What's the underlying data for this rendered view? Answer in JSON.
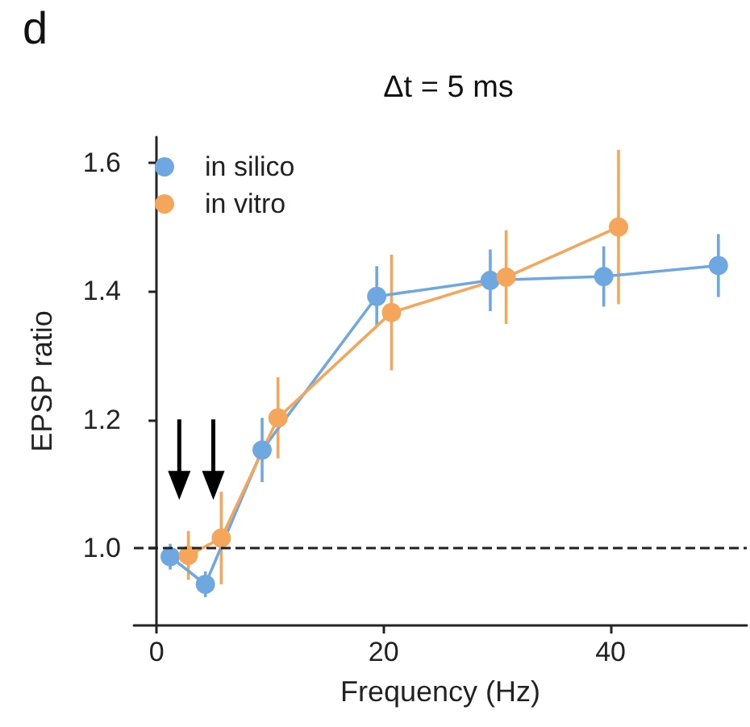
{
  "chart_data": {
    "type": "line",
    "title": "Δt = 5 ms",
    "xlabel": "Frequency (Hz)",
    "ylabel": "EPSP ratio",
    "annotations": [
      "d"
    ],
    "series": [
      {
        "name": "in silico",
        "color": "#6fa8e0",
        "x": [
          1.2,
          4.3,
          9.3,
          19.4,
          29.4,
          39.4,
          49.5
        ],
        "values": [
          0.987,
          0.944,
          1.153,
          1.392,
          1.417,
          1.423,
          1.44
        ],
        "errors": [
          0.02,
          0.02,
          0.05,
          0.047,
          0.048,
          0.047,
          0.049
        ]
      },
      {
        "name": "in vitro",
        "color": "#f5a65b",
        "x": [
          2.8,
          5.7,
          10.7,
          20.7,
          30.8,
          40.7
        ],
        "values": [
          0.989,
          1.016,
          1.203,
          1.367,
          1.422,
          1.5
        ],
        "errors": [
          0.038,
          0.072,
          0.063,
          0.09,
          0.073,
          0.12
        ]
      }
    ],
    "ref_lines": [
      {
        "axis": "y",
        "value": 1.0,
        "color": "#222222",
        "line_style": "dashed"
      }
    ],
    "xlim": [
      -2,
      52
    ],
    "xticks": [
      0,
      20,
      40
    ],
    "ylim": [
      0.88,
      1.64
    ],
    "yticks": [
      {
        "value": 1.0,
        "label": "1.0"
      },
      1.2,
      1.4,
      1.6
    ],
    "grid": false,
    "legend": "top left",
    "marker": "circle",
    "line_style": "solid"
  }
}
